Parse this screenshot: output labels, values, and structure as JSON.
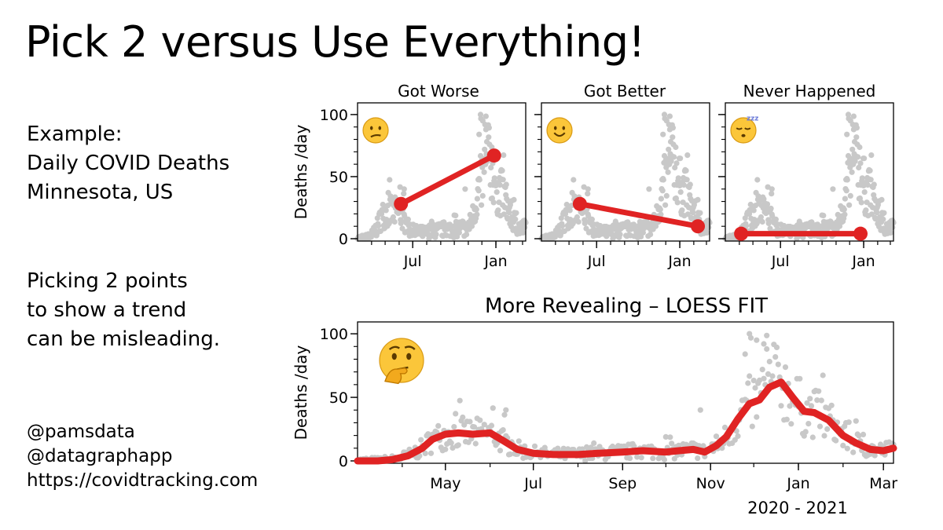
{
  "title": "Pick 2 versus Use Everything!",
  "example": {
    "line1": "Example:",
    "line2": "Daily COVID Deaths",
    "line3": "Minnesota, US"
  },
  "note": {
    "line1": "Picking 2 points",
    "line2": "to show a trend",
    "line3": "can be misleading."
  },
  "credits": {
    "line1": "@pamsdata",
    "line2": "@datagraphapp",
    "line3": "https://covidtracking.com"
  },
  "colors": {
    "scatter": "#c8c8c8",
    "trend": "#e02323",
    "emoji_fill": "#fbc63a"
  },
  "chart_data": [
    {
      "type": "line",
      "title": "Got Worse",
      "ylabel": "Deaths /day",
      "ylim": [
        0,
        105
      ],
      "yticks": [
        0,
        50,
        100
      ],
      "xticks": [
        "Jul",
        "Jan"
      ],
      "emoji": "confused-face-icon",
      "points": [
        [
          "2020-06-05",
          28
        ],
        [
          "2020-12-28",
          67
        ]
      ]
    },
    {
      "type": "line",
      "title": "Got Better",
      "xticks": [
        "Jul",
        "Jan"
      ],
      "emoji": "smiling-face-icon",
      "points": [
        [
          "2020-05-25",
          28
        ],
        [
          "2021-02-10",
          10
        ]
      ]
    },
    {
      "type": "line",
      "title": "Never Happened",
      "xticks": [
        "Jul",
        "Jan"
      ],
      "emoji": "sleeping-face-icon",
      "points": [
        [
          "2020-04-05",
          4
        ],
        [
          "2020-12-25",
          4
        ]
      ]
    },
    {
      "type": "line",
      "title": "More Revealing – LOESS FIT",
      "ylabel": "Deaths /day",
      "xlabel": "2020 - 2021",
      "ylim": [
        0,
        105
      ],
      "yticks": [
        0,
        50,
        100
      ],
      "xticks": [
        "May",
        "Jul",
        "Sep",
        "Nov",
        "Jan",
        "Mar"
      ],
      "emoji": "thinking-face-icon",
      "series": [
        {
          "x": [
            "2020-03-01",
            "2020-03-15",
            "2020-03-25",
            "2020-04-05",
            "2020-04-15",
            "2020-04-22",
            "2020-05-01",
            "2020-05-10",
            "2020-05-20",
            "2020-06-01",
            "2020-06-10",
            "2020-06-20",
            "2020-07-01",
            "2020-07-15",
            "2020-08-01",
            "2020-08-15",
            "2020-09-01",
            "2020-09-15",
            "2020-10-01",
            "2020-10-10",
            "2020-10-20",
            "2020-10-28",
            "2020-11-05",
            "2020-11-12",
            "2020-11-20",
            "2020-11-28",
            "2020-12-05",
            "2020-12-12",
            "2020-12-20",
            "2020-12-28",
            "2021-01-05",
            "2021-01-12",
            "2021-01-22",
            "2021-02-01",
            "2021-02-10",
            "2021-02-20",
            "2021-03-01",
            "2021-03-08"
          ],
          "y": [
            0,
            0,
            1,
            4,
            10,
            17,
            21,
            22,
            21,
            22,
            16,
            9,
            6,
            5,
            5,
            6,
            7,
            8,
            7,
            8,
            9,
            7,
            12,
            19,
            33,
            45,
            48,
            58,
            62,
            50,
            39,
            38,
            32,
            20,
            14,
            9,
            8,
            10
          ]
        }
      ]
    }
  ]
}
